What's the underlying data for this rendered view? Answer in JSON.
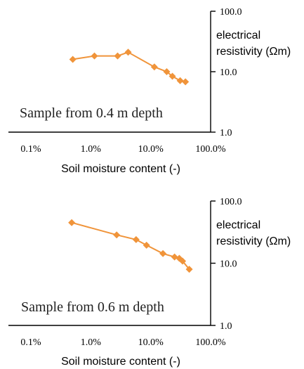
{
  "chart_data": [
    {
      "type": "scatter",
      "title": "",
      "annotation": "Sample from 0.4 m depth",
      "xlabel": "Soil moisture content (-)",
      "ylabel": "electrical resistivity (Ωm)",
      "ylabel_lines": [
        "electrical",
        "resistivity (Ωm)"
      ],
      "xscale": "log",
      "yscale": "log",
      "xlim": [
        0.001,
        1
      ],
      "ylim": [
        1,
        100
      ],
      "x_ticks": [
        0.001,
        0.01,
        0.1,
        1
      ],
      "x_tick_labels": [
        "0.1%",
        "1.0%",
        "10.0%",
        "100.0%"
      ],
      "y_ticks": [
        1,
        10,
        100
      ],
      "y_tick_labels": [
        "1.0",
        "10.0",
        "100.0"
      ],
      "grid": false,
      "legend": "none",
      "color": "#f0943a",
      "series": [
        {
          "x": [
            0.005,
            0.0115,
            0.028,
            0.042,
            0.115,
            0.185,
            0.23,
            0.31,
            0.38
          ],
          "y": [
            16.0,
            18.2,
            18.2,
            21.0,
            12.0,
            10.0,
            8.4,
            7.1,
            6.8
          ]
        }
      ]
    },
    {
      "type": "scatter",
      "title": "",
      "annotation": "Sample from 0.6 m depth",
      "xlabel": "Soil moisture content (-)",
      "ylabel": "electrical resistivity (Ωm)",
      "ylabel_lines": [
        "electrical",
        "resistivity (Ωm)"
      ],
      "xscale": "log",
      "yscale": "log",
      "xlim": [
        0.001,
        1
      ],
      "ylim": [
        1,
        100
      ],
      "x_ticks": [
        0.001,
        0.01,
        0.1,
        1
      ],
      "x_tick_labels": [
        "0.1%",
        "1.0%",
        "10.0%",
        "100.0%"
      ],
      "y_ticks": [
        1,
        10,
        100
      ],
      "y_tick_labels": [
        "1.0",
        "10.0",
        "100.0"
      ],
      "grid": false,
      "legend": "none",
      "color": "#f0943a",
      "series": [
        {
          "x": [
            0.0048,
            0.027,
            0.057,
            0.085,
            0.16,
            0.25,
            0.3,
            0.34,
            0.44
          ],
          "y": [
            45.0,
            28.5,
            24.0,
            19.5,
            14.3,
            12.6,
            12.0,
            10.8,
            8.0
          ]
        }
      ]
    }
  ]
}
